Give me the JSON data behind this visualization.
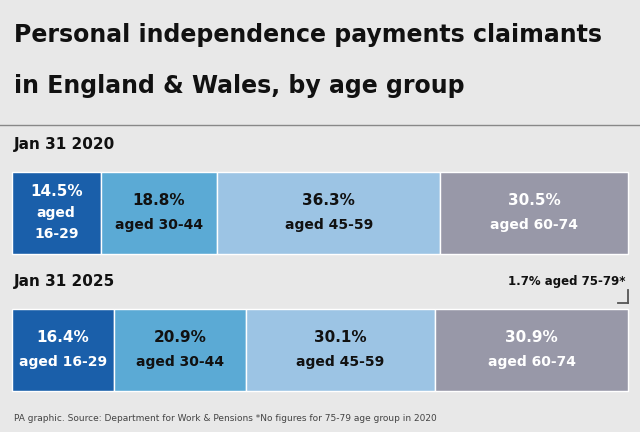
{
  "title_line1": "Personal independence payments claimants",
  "title_line2": "in England & Wales, by age group",
  "footnote": "PA graphic. Source: Department for Work & Pensions *No figures for 75-79 age group in 2020",
  "bar1_label": "Jan 31 2020",
  "bar2_label": "Jan 31 2025",
  "bar1_segments": [
    {
      "pct": 14.5,
      "pct_label": "14.5%",
      "age_label": "aged",
      "age_label2": "16-29",
      "color": "#1a5faa",
      "txt_color": "white",
      "multiline": true
    },
    {
      "pct": 18.8,
      "pct_label": "18.8%",
      "age_label": "aged 30-44",
      "age_label2": "",
      "color": "#5baad5",
      "txt_color": "#111111",
      "multiline": false
    },
    {
      "pct": 36.3,
      "pct_label": "36.3%",
      "age_label": "aged 45-59",
      "age_label2": "",
      "color": "#9cc4e4",
      "txt_color": "#111111",
      "multiline": false
    },
    {
      "pct": 30.5,
      "pct_label": "30.5%",
      "age_label": "aged 60-74",
      "age_label2": "",
      "color": "#9898a8",
      "txt_color": "white",
      "multiline": false
    }
  ],
  "bar2_segments": [
    {
      "pct": 16.4,
      "pct_label": "16.4%",
      "age_label": "aged 16-29",
      "age_label2": "",
      "color": "#1a5faa",
      "txt_color": "white",
      "multiline": false
    },
    {
      "pct": 20.9,
      "pct_label": "20.9%",
      "age_label": "aged 30-44",
      "age_label2": "",
      "color": "#5baad5",
      "txt_color": "#111111",
      "multiline": false
    },
    {
      "pct": 30.1,
      "pct_label": "30.1%",
      "age_label": "aged 45-59",
      "age_label2": "",
      "color": "#9cc4e4",
      "txt_color": "#111111",
      "multiline": false
    },
    {
      "pct": 30.9,
      "pct_label": "30.9%",
      "age_label": "aged 60-74",
      "age_label2": "",
      "color": "#9898a8",
      "txt_color": "white",
      "multiline": false
    }
  ],
  "extra_label": "1.7% aged 75-79*",
  "title_bg": "#ffffff",
  "body_bg": "#e8e8e8",
  "title_fontsize": 17,
  "section_fontsize": 11,
  "pct_fontsize": 11,
  "age_fontsize": 10
}
